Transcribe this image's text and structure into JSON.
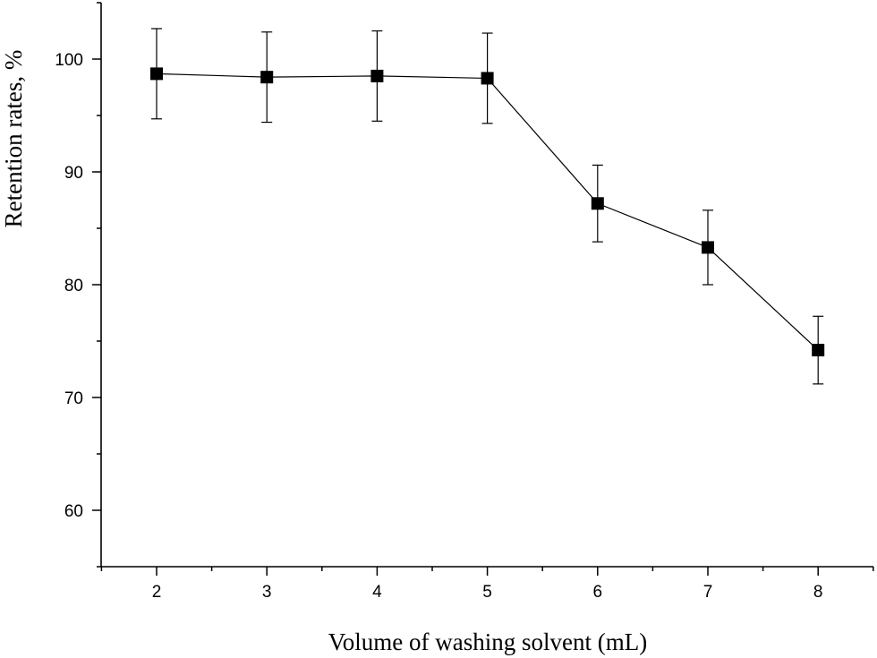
{
  "chart_data": {
    "type": "line",
    "title": "",
    "xlabel": "Volume of washing solvent (mL)",
    "ylabel": "Retention rates, %",
    "xlim": [
      1.5,
      8.5
    ],
    "ylim": [
      55,
      105
    ],
    "xticks": [
      2,
      3,
      4,
      5,
      6,
      7,
      8
    ],
    "yticks": [
      60,
      70,
      80,
      90,
      100
    ],
    "grid": false,
    "legend": "none",
    "marker": "square",
    "color": "#000000",
    "series": [
      {
        "x": [
          2,
          3,
          4,
          5,
          6,
          7,
          8
        ],
        "y": [
          98.7,
          98.4,
          98.5,
          98.3,
          87.2,
          83.3,
          74.2
        ],
        "error": [
          4.0,
          4.0,
          4.0,
          4.0,
          3.4,
          3.3,
          3.0
        ]
      }
    ]
  }
}
